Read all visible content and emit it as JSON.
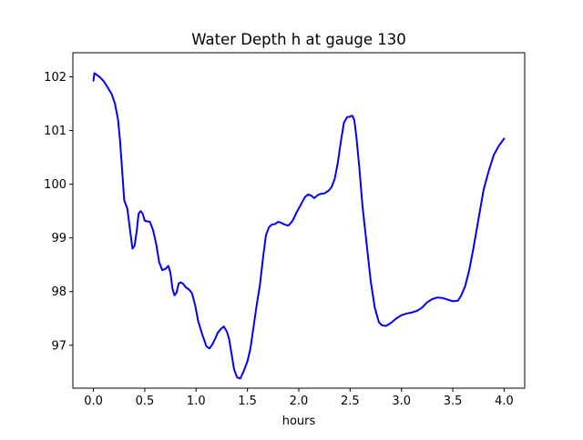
{
  "chart_data": {
    "type": "line",
    "title": "Water Depth h at gauge 130",
    "xlabel": "hours",
    "ylabel": "",
    "xlim": [
      -0.2,
      4.2
    ],
    "ylim": [
      96.2,
      102.45
    ],
    "grid": false,
    "xticks": [
      0.0,
      0.5,
      1.0,
      1.5,
      2.0,
      2.5,
      3.0,
      3.5,
      4.0
    ],
    "xtick_labels": [
      "0.0",
      "0.5",
      "1.0",
      "1.5",
      "2.0",
      "2.5",
      "3.0",
      "3.5",
      "4.0"
    ],
    "yticks": [
      97,
      98,
      99,
      100,
      101,
      102
    ],
    "ytick_labels": [
      "97",
      "98",
      "99",
      "100",
      "101",
      "102"
    ],
    "series": [
      {
        "color": "#0000ff",
        "x": [
          0.0,
          0.01,
          0.03,
          0.06,
          0.1,
          0.14,
          0.18,
          0.21,
          0.24,
          0.26,
          0.28,
          0.3,
          0.33,
          0.36,
          0.38,
          0.4,
          0.42,
          0.44,
          0.46,
          0.48,
          0.5,
          0.52,
          0.55,
          0.58,
          0.61,
          0.64,
          0.67,
          0.7,
          0.73,
          0.75,
          0.77,
          0.79,
          0.81,
          0.83,
          0.85,
          0.87,
          0.9,
          0.93,
          0.96,
          0.99,
          1.02,
          1.06,
          1.1,
          1.13,
          1.16,
          1.19,
          1.21,
          1.24,
          1.27,
          1.3,
          1.32,
          1.34,
          1.37,
          1.4,
          1.43,
          1.46,
          1.5,
          1.53,
          1.56,
          1.59,
          1.62,
          1.65,
          1.68,
          1.71,
          1.74,
          1.77,
          1.8,
          1.83,
          1.86,
          1.9,
          1.94,
          1.98,
          2.02,
          2.06,
          2.09,
          2.12,
          2.15,
          2.18,
          2.21,
          2.25,
          2.29,
          2.32,
          2.35,
          2.38,
          2.41,
          2.44,
          2.47,
          2.5,
          2.52,
          2.54,
          2.56,
          2.59,
          2.62,
          2.66,
          2.7,
          2.74,
          2.78,
          2.81,
          2.85,
          2.9,
          2.95,
          3.0,
          3.05,
          3.1,
          3.15,
          3.2,
          3.25,
          3.3,
          3.35,
          3.4,
          3.45,
          3.5,
          3.55,
          3.58,
          3.62,
          3.66,
          3.7,
          3.75,
          3.8,
          3.85,
          3.9,
          3.95,
          4.0
        ],
        "y": [
          101.93,
          102.07,
          102.04,
          102.0,
          101.92,
          101.8,
          101.67,
          101.5,
          101.2,
          100.8,
          100.25,
          99.7,
          99.55,
          99.1,
          98.8,
          98.85,
          99.1,
          99.45,
          99.5,
          99.45,
          99.32,
          99.31,
          99.3,
          99.15,
          98.9,
          98.55,
          98.4,
          98.42,
          98.48,
          98.35,
          98.05,
          97.93,
          97.98,
          98.15,
          98.17,
          98.15,
          98.08,
          98.04,
          97.97,
          97.75,
          97.45,
          97.2,
          96.98,
          96.94,
          97.02,
          97.14,
          97.23,
          97.3,
          97.35,
          97.25,
          97.13,
          96.9,
          96.55,
          96.4,
          96.38,
          96.5,
          96.7,
          96.95,
          97.35,
          97.75,
          98.1,
          98.6,
          99.05,
          99.2,
          99.25,
          99.26,
          99.3,
          99.28,
          99.25,
          99.23,
          99.32,
          99.48,
          99.62,
          99.76,
          99.81,
          99.79,
          99.74,
          99.79,
          99.82,
          99.83,
          99.88,
          99.95,
          100.1,
          100.4,
          100.8,
          101.15,
          101.25,
          101.26,
          101.28,
          101.2,
          100.9,
          100.3,
          99.6,
          98.9,
          98.2,
          97.7,
          97.43,
          97.37,
          97.36,
          97.42,
          97.5,
          97.56,
          97.59,
          97.61,
          97.64,
          97.7,
          97.8,
          97.86,
          97.89,
          97.88,
          97.85,
          97.82,
          97.83,
          97.92,
          98.1,
          98.4,
          98.8,
          99.35,
          99.9,
          100.25,
          100.55,
          100.72,
          100.85
        ]
      }
    ]
  }
}
